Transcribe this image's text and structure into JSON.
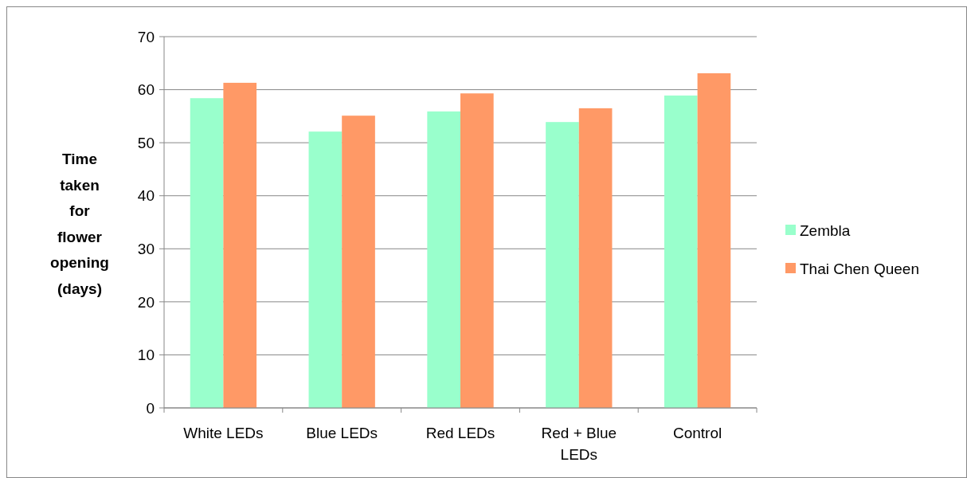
{
  "chart_data": {
    "type": "bar",
    "ylabel": "Time taken for flower opening (days)",
    "categories": [
      "White LEDs",
      "Blue LEDs",
      "Red LEDs",
      "Red + Blue LEDs",
      "Control"
    ],
    "series": [
      {
        "name": "Zembla",
        "color": "#99ffcc",
        "values": [
          58.4,
          52.1,
          55.9,
          53.9,
          58.9
        ]
      },
      {
        "name": "Thai Chen Queen",
        "color": "#ff9966",
        "values": [
          61.3,
          55.1,
          59.3,
          56.5,
          63.1
        ]
      }
    ],
    "ylim": [
      0,
      70
    ],
    "yticks": [
      0,
      10,
      20,
      30,
      40,
      50,
      60,
      70
    ],
    "grid": "y",
    "legend": "right"
  }
}
